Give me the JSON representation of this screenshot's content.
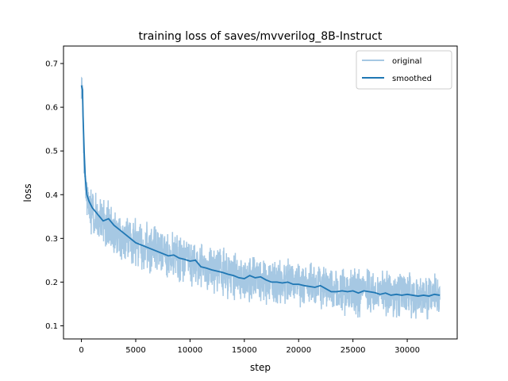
{
  "chart_data": {
    "type": "line",
    "title": "training loss of saves/mvverilog_8B-Instruct",
    "xlabel": "step",
    "ylabel": "loss",
    "xlim": [
      -1650,
      34600
    ],
    "ylim": [
      0.07,
      0.74
    ],
    "xticks": [
      0,
      5000,
      10000,
      15000,
      20000,
      25000,
      30000
    ],
    "yticks": [
      0.1,
      0.2,
      0.3,
      0.4,
      0.5,
      0.6,
      0.7
    ],
    "grid": false,
    "legend_position": "top-right",
    "series": [
      {
        "name": "original",
        "color": "#a6c8e3",
        "x_start": 0,
        "x_end": 33000,
        "points": 1650,
        "noise_amplitude": 0.06,
        "seed": 13,
        "trend": [
          [
            0,
            0.65
          ],
          [
            100,
            0.62
          ],
          [
            200,
            0.5
          ],
          [
            400,
            0.41
          ],
          [
            600,
            0.38
          ],
          [
            1000,
            0.36
          ],
          [
            2000,
            0.34
          ],
          [
            3000,
            0.315
          ],
          [
            5000,
            0.29
          ],
          [
            7000,
            0.27
          ],
          [
            9000,
            0.255
          ],
          [
            11000,
            0.235
          ],
          [
            13000,
            0.22
          ],
          [
            15000,
            0.21
          ],
          [
            18000,
            0.2
          ],
          [
            20000,
            0.195
          ],
          [
            22000,
            0.19
          ],
          [
            24000,
            0.18
          ],
          [
            27000,
            0.175
          ],
          [
            30000,
            0.17
          ],
          [
            33000,
            0.17
          ]
        ]
      },
      {
        "name": "smoothed",
        "color": "#1f77b4",
        "points": [
          [
            0,
            0.65
          ],
          [
            100,
            0.64
          ],
          [
            150,
            0.58
          ],
          [
            250,
            0.5
          ],
          [
            350,
            0.44
          ],
          [
            500,
            0.4
          ],
          [
            700,
            0.385
          ],
          [
            1000,
            0.37
          ],
          [
            1500,
            0.355
          ],
          [
            2000,
            0.34
          ],
          [
            2500,
            0.345
          ],
          [
            3000,
            0.33
          ],
          [
            3500,
            0.32
          ],
          [
            4000,
            0.31
          ],
          [
            4500,
            0.3
          ],
          [
            5000,
            0.29
          ],
          [
            5500,
            0.285
          ],
          [
            6000,
            0.28
          ],
          [
            6500,
            0.275
          ],
          [
            7000,
            0.27
          ],
          [
            7500,
            0.265
          ],
          [
            8000,
            0.26
          ],
          [
            8500,
            0.262
          ],
          [
            9000,
            0.255
          ],
          [
            9500,
            0.252
          ],
          [
            10000,
            0.248
          ],
          [
            10500,
            0.25
          ],
          [
            11000,
            0.235
          ],
          [
            11500,
            0.232
          ],
          [
            12000,
            0.228
          ],
          [
            12500,
            0.225
          ],
          [
            13000,
            0.222
          ],
          [
            13500,
            0.218
          ],
          [
            14000,
            0.215
          ],
          [
            14500,
            0.21
          ],
          [
            15000,
            0.208
          ],
          [
            15500,
            0.215
          ],
          [
            16000,
            0.21
          ],
          [
            16500,
            0.212
          ],
          [
            17000,
            0.205
          ],
          [
            17500,
            0.2
          ],
          [
            18000,
            0.2
          ],
          [
            18500,
            0.198
          ],
          [
            19000,
            0.2
          ],
          [
            19500,
            0.195
          ],
          [
            20000,
            0.195
          ],
          [
            20500,
            0.192
          ],
          [
            21000,
            0.19
          ],
          [
            21500,
            0.188
          ],
          [
            22000,
            0.192
          ],
          [
            22500,
            0.185
          ],
          [
            23000,
            0.178
          ],
          [
            23500,
            0.178
          ],
          [
            24000,
            0.18
          ],
          [
            24500,
            0.178
          ],
          [
            25000,
            0.18
          ],
          [
            25500,
            0.175
          ],
          [
            26000,
            0.18
          ],
          [
            26500,
            0.178
          ],
          [
            27000,
            0.176
          ],
          [
            27500,
            0.172
          ],
          [
            28000,
            0.175
          ],
          [
            28500,
            0.17
          ],
          [
            29000,
            0.172
          ],
          [
            29500,
            0.17
          ],
          [
            30000,
            0.172
          ],
          [
            30500,
            0.17
          ],
          [
            31000,
            0.168
          ],
          [
            31500,
            0.17
          ],
          [
            32000,
            0.168
          ],
          [
            32500,
            0.172
          ],
          [
            33000,
            0.17
          ]
        ]
      }
    ]
  }
}
